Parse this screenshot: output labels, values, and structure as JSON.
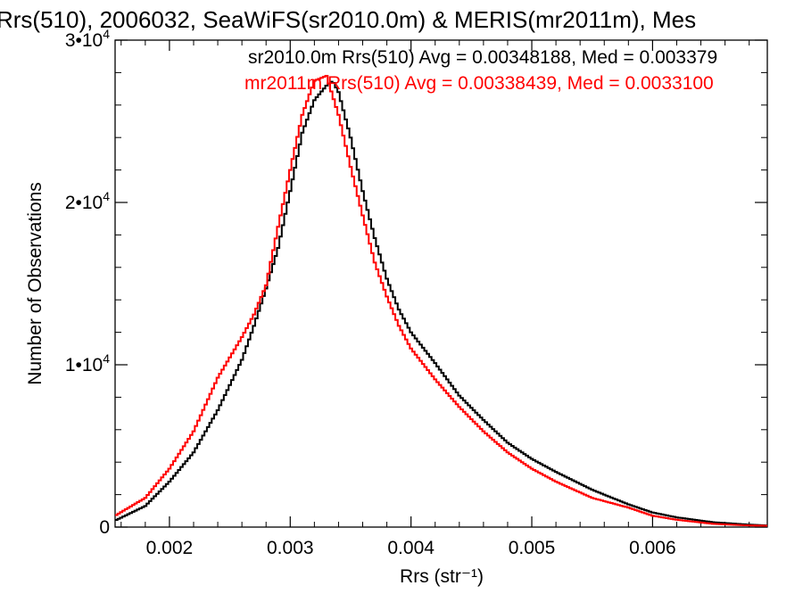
{
  "chart_data": {
    "type": "line",
    "title": "Rrs(510), 2006032, SeaWiFS(sr2010.0m) & MERIS(mr2011m), Mes",
    "xlabel": "Rrs (str⁻¹)",
    "ylabel": "Number of Observations",
    "xlim": [
      0.00155,
      0.00695
    ],
    "ylim": [
      0,
      30000
    ],
    "x_ticks": [
      {
        "value": 0.002,
        "label": "0.002"
      },
      {
        "value": 0.003,
        "label": "0.003"
      },
      {
        "value": 0.004,
        "label": "0.004"
      },
      {
        "value": 0.005,
        "label": "0.005"
      },
      {
        "value": 0.006,
        "label": "0.006"
      }
    ],
    "y_ticks": [
      {
        "value": 0,
        "base": "0",
        "exp": ""
      },
      {
        "value": 10000,
        "base": "1•10",
        "exp": "4"
      },
      {
        "value": 20000,
        "base": "2•10",
        "exp": "4"
      },
      {
        "value": 30000,
        "base": "3•10",
        "exp": "4"
      }
    ],
    "annotations": [
      {
        "text": "sr2010.0m Rrs(510) Avg = 0.00348188, Med = 0.003379",
        "color": "#000000"
      },
      {
        "text": "mr2011m Rrs(510) Avg = 0.00338439, Med = 0.0033100",
        "color": "#ff0000"
      }
    ],
    "series": [
      {
        "color": "#000000",
        "x": [
          0.00155,
          0.0018,
          0.002,
          0.0022,
          0.0024,
          0.0026,
          0.0027,
          0.0028,
          0.0029,
          0.003,
          0.0031,
          0.0032,
          0.0033,
          0.00335,
          0.0034,
          0.0035,
          0.0036,
          0.0037,
          0.0038,
          0.0039,
          0.004,
          0.0042,
          0.0044,
          0.0046,
          0.0048,
          0.005,
          0.0052,
          0.0055,
          0.0058,
          0.006,
          0.0062,
          0.0065,
          0.0068,
          0.00695
        ],
        "values": [
          400,
          1300,
          2800,
          4600,
          7200,
          10300,
          12400,
          14700,
          17200,
          20700,
          24300,
          26300,
          27200,
          27500,
          26800,
          24000,
          20700,
          17800,
          15300,
          13400,
          12000,
          10100,
          8100,
          6600,
          5200,
          4200,
          3400,
          2300,
          1400,
          900,
          600,
          300,
          150,
          100
        ]
      },
      {
        "color": "#ff0000",
        "x": [
          0.00155,
          0.0018,
          0.002,
          0.0022,
          0.0024,
          0.0026,
          0.0027,
          0.0028,
          0.0029,
          0.003,
          0.0031,
          0.0032,
          0.0033,
          0.0034,
          0.0035,
          0.0036,
          0.0037,
          0.0038,
          0.0039,
          0.004,
          0.0042,
          0.0044,
          0.0046,
          0.0048,
          0.005,
          0.0052,
          0.0055,
          0.0058,
          0.006,
          0.0062,
          0.0065,
          0.0068,
          0.00695
        ],
        "values": [
          700,
          1800,
          3600,
          5900,
          9200,
          11700,
          13100,
          14900,
          18500,
          22000,
          25400,
          27500,
          27800,
          25400,
          22200,
          19200,
          16300,
          14200,
          12400,
          11000,
          9100,
          7400,
          5900,
          4600,
          3600,
          2800,
          1800,
          1200,
          700,
          450,
          200,
          100,
          80
        ]
      }
    ]
  }
}
